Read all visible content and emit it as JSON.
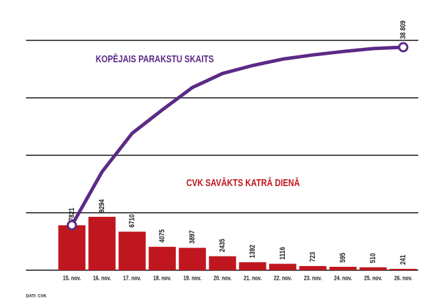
{
  "chart_data": {
    "type": "bar",
    "line_title": "KOPĒJAIS PARAKSTU SKAITS",
    "bar_title": "CVK SAVĀKTS KATRĀ DIENĀ",
    "source": "DATI: CVK",
    "categories": [
      "15. nov.",
      "16. nov.",
      "17. nov.",
      "18. nov.",
      "19. nov.",
      "20. nov.",
      "21. nov.",
      "22. nov.",
      "23. nov.",
      "24. nov.",
      "25. nov.",
      "26. nov."
    ],
    "series": [
      {
        "type": "bar",
        "color": "#c0161f",
        "values": [
          7821,
          9294,
          6710,
          4075,
          3897,
          2435,
          1392,
          1116,
          723,
          595,
          510,
          241
        ]
      },
      {
        "type": "line",
        "color": "#5b2a86",
        "values": [
          7821,
          17115,
          23825,
          27900,
          31797,
          34232,
          35624,
          36740,
          37463,
          38058,
          38568,
          38809
        ],
        "value_labels": [
          null,
          null,
          null,
          null,
          null,
          null,
          null,
          null,
          null,
          null,
          null,
          "38 809"
        ]
      }
    ],
    "ylim": [
      0,
      40000
    ],
    "yticks": [
      0,
      10000,
      20000,
      30000,
      40000
    ],
    "grid": true
  }
}
